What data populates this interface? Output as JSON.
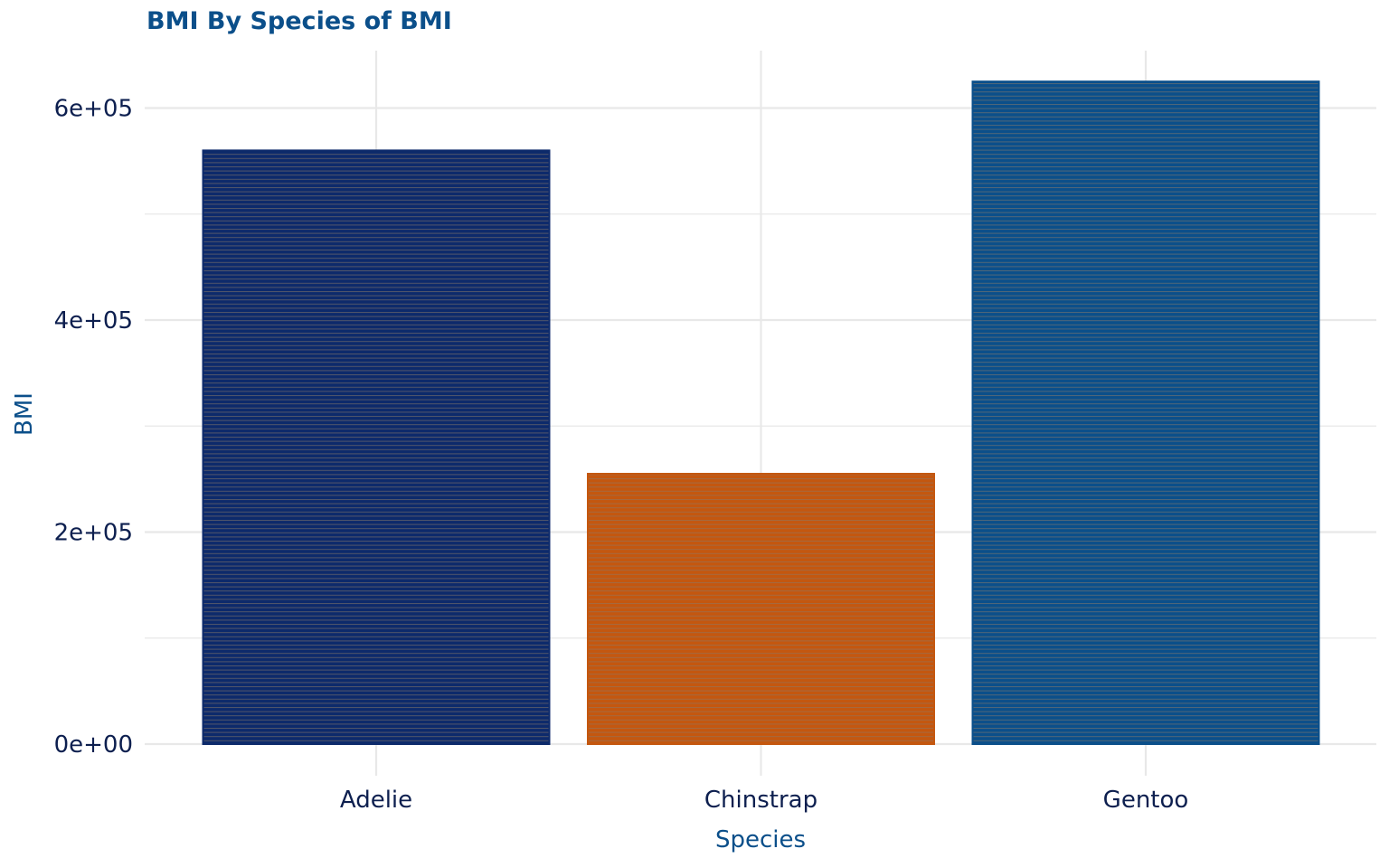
{
  "chart_data": {
    "type": "bar",
    "title": "BMI By Species of BMI",
    "xlabel": "Species",
    "ylabel": "BMI",
    "categories": [
      "Adelie",
      "Chinstrap",
      "Gentoo"
    ],
    "values": [
      560000,
      255000,
      625000
    ],
    "ylim": [
      0,
      655000
    ],
    "y_ticks": [
      0,
      200000,
      400000,
      600000
    ],
    "y_tick_labels": [
      "0e+00",
      "2e+05",
      "4e+05",
      "6e+05"
    ],
    "y_minor_ticks": [
      100000,
      300000,
      500000
    ],
    "grid": true,
    "legend": "none",
    "colors": {
      "bars": [
        "#0d2a6b",
        "#c4570f",
        "#0b4f8a"
      ],
      "bar_stripe": "#8a7a6a",
      "title": "#0b4f8a",
      "axis_title": "#0b4f8a",
      "tick_label": "#0d1f4f",
      "grid": "#e8e8e8"
    }
  }
}
